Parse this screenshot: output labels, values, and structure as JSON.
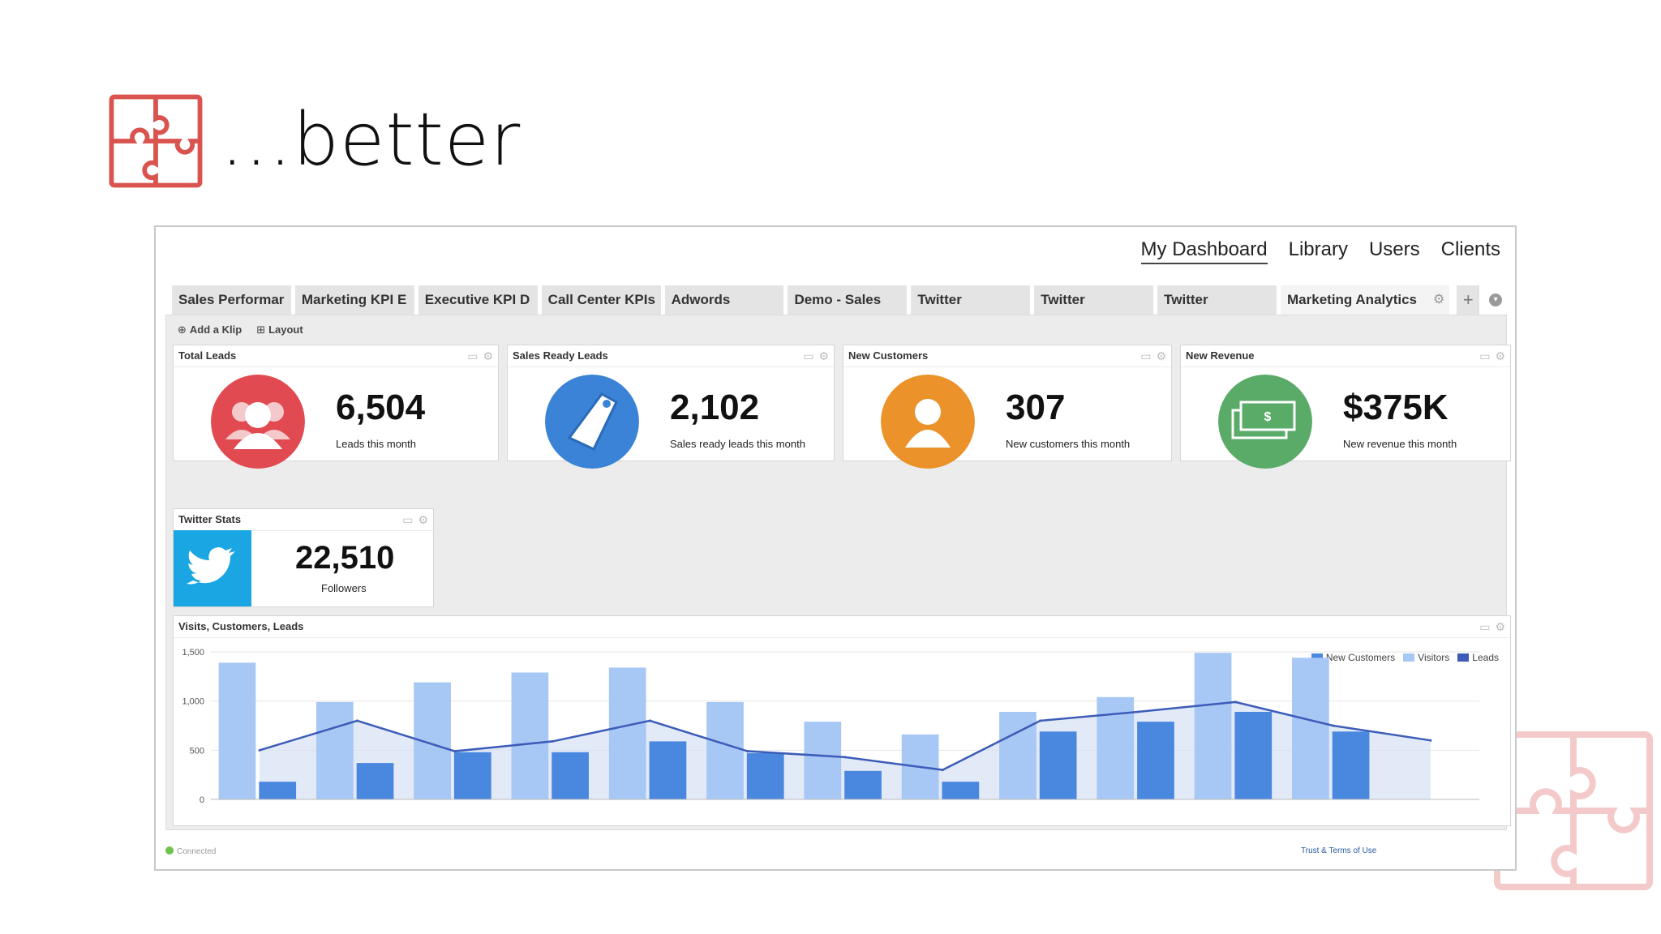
{
  "slide": {
    "title": "...better"
  },
  "nav": {
    "items": [
      "My Dashboard",
      "Library",
      "Users",
      "Clients"
    ]
  },
  "tabs": [
    "Sales Performar",
    "Marketing KPI E",
    "Executive KPI D",
    "Call Center KPIs",
    "Adwords",
    "Demo - Sales",
    "Twitter",
    "Twitter",
    "Twitter",
    "Marketing Analytics"
  ],
  "toolbar": {
    "add_klip": "Add a Klip",
    "layout": "Layout"
  },
  "klips": [
    {
      "title": "Total Leads",
      "value": "6,504",
      "label": "Leads this month",
      "color": "#e24a52",
      "icon": "users-icon"
    },
    {
      "title": "Sales Ready Leads",
      "value": "2,102",
      "label": "Sales ready leads this month",
      "color": "#3b83d6",
      "icon": "tag-icon"
    },
    {
      "title": "New Customers",
      "value": "307",
      "label": "New customers this month",
      "color": "#eb922a",
      "icon": "user-icon"
    },
    {
      "title": "New Revenue",
      "value": "$375K",
      "label": "New revenue this month",
      "color": "#5aaa68",
      "icon": "money-icon"
    }
  ],
  "twitter": {
    "title": "Twitter Stats",
    "value": "22,510",
    "label": "Followers",
    "color": "#1aa6e3"
  },
  "chart_data": {
    "type": "bar",
    "title": "Visits, Customers, Leads",
    "x": [
      1,
      2,
      3,
      4,
      5,
      6,
      7,
      8,
      9,
      10,
      11,
      12,
      13
    ],
    "ylim": [
      0,
      1500
    ],
    "yticks": [
      "0",
      "500",
      "1,000",
      "1,500"
    ],
    "legend_position": "top-right",
    "series": [
      {
        "name": "New Customers",
        "kind": "bar",
        "color": "#4a88e0",
        "values": [
          180,
          370,
          480,
          480,
          590,
          470,
          290,
          180,
          690,
          790,
          890,
          690,
          0
        ]
      },
      {
        "name": "Visitors",
        "kind": "bar",
        "color": "#a7c7f5",
        "values": [
          1390,
          990,
          1190,
          1290,
          1340,
          990,
          790,
          660,
          890,
          1040,
          1490,
          1440,
          0
        ]
      },
      {
        "name": "Leads",
        "kind": "line",
        "color": "#3c5cb8",
        "values": [
          500,
          800,
          490,
          590,
          800,
          490,
          430,
          300,
          800,
          890,
          990,
          750,
          600
        ]
      }
    ]
  },
  "footer": {
    "status": "Connected",
    "terms": "Trust & Terms of Use"
  }
}
